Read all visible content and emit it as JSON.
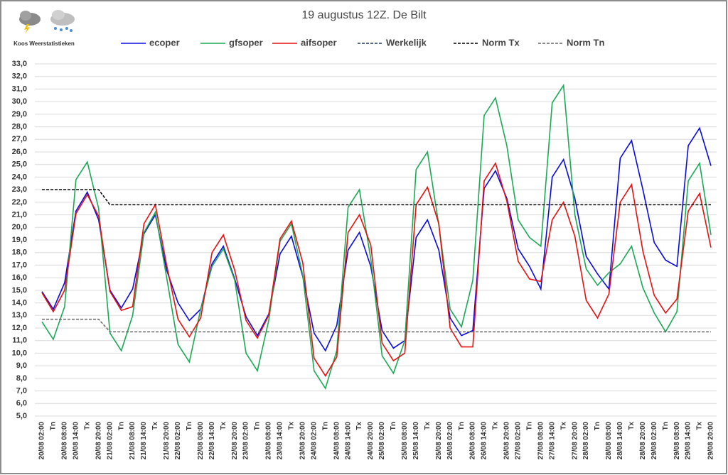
{
  "chart_data": {
    "type": "line",
    "title": "19 augustus 12Z. De Bilt",
    "logo_text": "Koos Weerstatistieken",
    "categories": [
      "20/08 02:00",
      "Tn",
      "20/08 08:00",
      "20/08 14:00",
      "Tx",
      "20/08 20:00",
      "21/08 02:00",
      "Tn",
      "21/08 08:00",
      "21/08 14:00",
      "Tx",
      "21/08 20:00",
      "22/08 02:00",
      "Tn",
      "22/08 08:00",
      "22/08 14:00",
      "Tx",
      "22/08 20:00",
      "23/08 02:00",
      "Tn",
      "23/08 08:00",
      "23/08 14:00",
      "Tx",
      "23/08 20:00",
      "24/08 02:00",
      "Tn",
      "24/08 08:00",
      "24/08 14:00",
      "Tx",
      "24/08 20:00",
      "25/08 02:00",
      "Tn",
      "25/08 08:00",
      "25/08 14:00",
      "Tx",
      "25/08 20:00",
      "26/08 02:00",
      "Tn",
      "26/08 08:00",
      "26/08 14:00",
      "Tx",
      "26/08 20:00",
      "27/08 02:00",
      "Tn",
      "27/08 08:00",
      "27/08 14:00",
      "Tx",
      "27/08 20:00",
      "28/08 02:00",
      "Tn",
      "28/08 08:00",
      "28/08 14:00",
      "Tx",
      "28/08 20:00",
      "29/08 02:00",
      "Tn",
      "29/08 08:00",
      "29/08 14:00",
      "Tx",
      "29/08 20:00"
    ],
    "series": [
      {
        "name": "ecoper",
        "color": "#0a0ae0",
        "dashed": false,
        "values": [
          14.9,
          13.5,
          15.6,
          21.3,
          22.8,
          20.6,
          15.0,
          13.6,
          15.1,
          19.5,
          21.0,
          16.6,
          14.0,
          12.6,
          13.5,
          17.1,
          18.5,
          15.9,
          12.9,
          11.4,
          13.1,
          17.9,
          19.3,
          16.1,
          11.6,
          10.2,
          12.2,
          18.2,
          19.6,
          16.9,
          11.8,
          10.4,
          11.0,
          19.2,
          20.6,
          18.2,
          12.8,
          11.4,
          11.8,
          23.1,
          24.5,
          22.3,
          18.3,
          16.9,
          15.1,
          24.0,
          25.4,
          22.3,
          17.7,
          16.3,
          15.1,
          25.5,
          26.9,
          23.0,
          18.8,
          17.4,
          16.9,
          26.5,
          27.9,
          24.9
        ]
      },
      {
        "name": "gfsoper",
        "color": "#1aaa55",
        "dashed": false,
        "values": [
          12.5,
          11.1,
          13.7,
          23.8,
          25.2,
          21.5,
          11.6,
          10.2,
          13.0,
          19.6,
          21.2,
          16.0,
          10.7,
          9.3,
          13.5,
          16.9,
          18.3,
          15.8,
          10.0,
          8.6,
          12.6,
          18.9,
          20.3,
          16.2,
          8.6,
          7.2,
          10.2,
          21.6,
          23.0,
          17.5,
          9.8,
          8.4,
          11.0,
          24.6,
          26.0,
          20.2,
          13.5,
          12.1,
          15.8,
          28.9,
          30.3,
          26.5,
          20.6,
          19.2,
          18.5,
          29.9,
          31.3,
          21.0,
          16.7,
          15.4,
          16.4,
          17.1,
          18.5,
          15.2,
          13.2,
          11.7,
          13.3,
          23.7,
          25.1,
          19.4
        ]
      },
      {
        "name": "aifsoper",
        "color": "#e81010",
        "dashed": false,
        "values": [
          14.8,
          13.3,
          15.0,
          21.1,
          22.6,
          20.9,
          14.9,
          13.4,
          13.7,
          20.3,
          21.8,
          17.0,
          12.7,
          11.3,
          12.8,
          18.0,
          19.4,
          16.6,
          12.6,
          11.2,
          13.0,
          19.1,
          20.5,
          17.2,
          9.6,
          8.2,
          9.7,
          19.6,
          21.0,
          18.6,
          10.8,
          9.4,
          10.0,
          21.8,
          23.2,
          20.3,
          12.0,
          10.5,
          10.5,
          23.7,
          25.1,
          22.1,
          17.3,
          15.9,
          15.7,
          20.6,
          22.0,
          19.3,
          14.2,
          12.8,
          14.7,
          22.0,
          23.4,
          18.1,
          14.6,
          13.2,
          14.3,
          21.3,
          22.7,
          18.4
        ]
      },
      {
        "name": "Werkelijk",
        "color": "#1f3864",
        "dashed": true,
        "values": [
          null,
          null,
          null,
          null,
          null,
          null,
          null,
          null,
          null,
          null,
          null,
          null,
          null,
          null,
          null,
          null,
          null,
          null,
          null,
          null,
          null,
          null,
          null,
          null,
          null,
          null,
          null,
          null,
          null,
          null,
          null,
          null,
          null,
          null,
          null,
          null,
          null,
          null,
          null,
          null,
          null,
          null,
          null,
          null,
          null,
          null,
          null,
          null,
          null,
          null,
          null,
          null,
          null,
          null,
          null,
          null,
          null,
          null,
          null,
          null
        ]
      },
      {
        "name": "Norm Tx",
        "color": "#000000",
        "dashed": true,
        "values": [
          23.0,
          23.0,
          23.0,
          23.0,
          23.0,
          23.0,
          21.8,
          21.8,
          21.8,
          21.8,
          21.8,
          21.8,
          21.8,
          21.8,
          21.8,
          21.8,
          21.8,
          21.8,
          21.8,
          21.8,
          21.8,
          21.8,
          21.8,
          21.8,
          21.8,
          21.8,
          21.8,
          21.8,
          21.8,
          21.8,
          21.8,
          21.8,
          21.8,
          21.8,
          21.8,
          21.8,
          21.8,
          21.8,
          21.8,
          21.8,
          21.8,
          21.8,
          21.8,
          21.8,
          21.8,
          21.8,
          21.8,
          21.8,
          21.8,
          21.8,
          21.8,
          21.8,
          21.8,
          21.8,
          21.8,
          21.8,
          21.8,
          21.8,
          21.8,
          21.8
        ]
      },
      {
        "name": "Norm Tn",
        "color": "#666666",
        "dashed": true,
        "values": [
          12.7,
          12.7,
          12.7,
          12.7,
          12.7,
          12.7,
          11.7,
          11.7,
          11.7,
          11.7,
          11.7,
          11.7,
          11.7,
          11.7,
          11.7,
          11.7,
          11.7,
          11.7,
          11.7,
          11.7,
          11.7,
          11.7,
          11.7,
          11.7,
          11.7,
          11.7,
          11.7,
          11.7,
          11.7,
          11.7,
          11.7,
          11.7,
          11.7,
          11.7,
          11.7,
          11.7,
          11.7,
          11.7,
          11.7,
          11.7,
          11.7,
          11.7,
          11.7,
          11.7,
          11.7,
          11.7,
          11.7,
          11.7,
          11.7,
          11.7,
          11.7,
          11.7,
          11.7,
          11.7,
          11.7,
          11.7,
          11.7,
          11.7,
          11.7,
          11.7
        ]
      }
    ],
    "ylim": [
      5,
      33
    ],
    "yticks": [
      {
        "value": 5,
        "label": "5,0"
      },
      {
        "value": 6,
        "label": "6,0"
      },
      {
        "value": 7,
        "label": "7,0"
      },
      {
        "value": 8,
        "label": "8,0"
      },
      {
        "value": 9,
        "label": "9,0"
      },
      {
        "value": 10,
        "label": "10,0"
      },
      {
        "value": 11,
        "label": "11,0"
      },
      {
        "value": 12,
        "label": "12,0"
      },
      {
        "value": 13,
        "label": "13,0"
      },
      {
        "value": 14,
        "label": "14,0"
      },
      {
        "value": 15,
        "label": "15,0"
      },
      {
        "value": 16,
        "label": "16,0"
      },
      {
        "value": 17,
        "label": "17,0"
      },
      {
        "value": 18,
        "label": "18,0"
      },
      {
        "value": 19,
        "label": "19,0"
      },
      {
        "value": 20,
        "label": "20,0"
      },
      {
        "value": 21,
        "label": "21,0"
      },
      {
        "value": 22,
        "label": "22,0"
      },
      {
        "value": 23,
        "label": "23,0"
      },
      {
        "value": 24,
        "label": "24,0"
      },
      {
        "value": 25,
        "label": "25,0"
      },
      {
        "value": 26,
        "label": "26,0"
      },
      {
        "value": 27,
        "label": "27,0"
      },
      {
        "value": 28,
        "label": "28,0"
      },
      {
        "value": 29,
        "label": "29,0"
      },
      {
        "value": 30,
        "label": "30,0"
      },
      {
        "value": 31,
        "label": "31,0"
      },
      {
        "value": 32,
        "label": "32,0"
      },
      {
        "value": 33,
        "label": "33,0"
      }
    ],
    "grid": true
  }
}
